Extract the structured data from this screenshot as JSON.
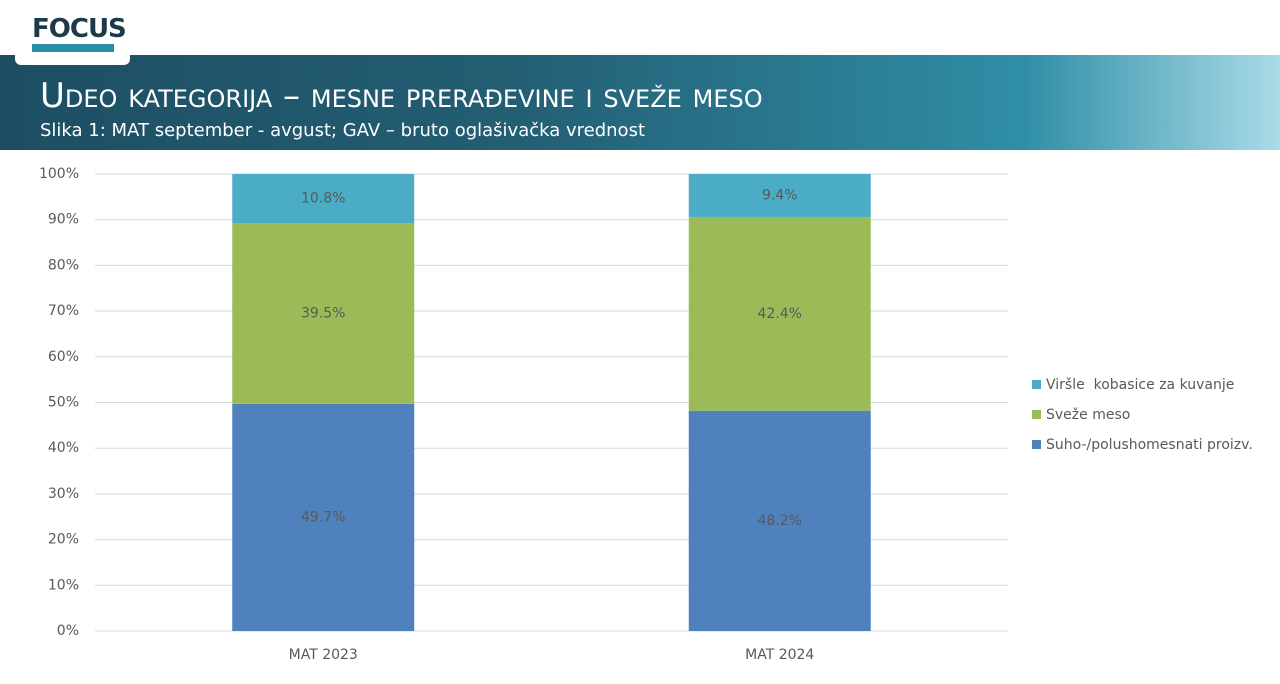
{
  "header": {
    "logo": "FOCUS",
    "title": "Udeo kategorija – mesne prerađevine i sveže meso",
    "subtitle": "Slika 1: MAT september - avgust; GAV – bruto oglašivačka vrednost"
  },
  "chart_data": {
    "type": "stacked-bar",
    "categories": [
      "MAT 2023",
      "MAT 2024"
    ],
    "series": [
      {
        "name": "Suho-/polushomesnati proizv.",
        "color": "#4f81bd",
        "values": [
          49.7,
          48.2
        ],
        "value_labels": [
          "49.7%",
          "48.2%"
        ]
      },
      {
        "name": "Sveže meso",
        "color": "#9bbb59",
        "values": [
          39.5,
          42.4
        ],
        "value_labels": [
          "39.5%",
          "42.4%"
        ]
      },
      {
        "name": "Viršle  kobasice za kuvanje",
        "color": "#4bacc6",
        "values": [
          10.8,
          9.4
        ],
        "value_labels": [
          "10.8%",
          "9.4%"
        ]
      }
    ],
    "ylim": [
      0,
      100
    ],
    "yticks": [
      {
        "value": 0,
        "label": "0%"
      },
      {
        "value": 10,
        "label": "10%"
      },
      {
        "value": 20,
        "label": "20%"
      },
      {
        "value": 30,
        "label": "30%"
      },
      {
        "value": 40,
        "label": "40%"
      },
      {
        "value": 50,
        "label": "50%"
      },
      {
        "value": 60,
        "label": "60%"
      },
      {
        "value": 70,
        "label": "70%"
      },
      {
        "value": 80,
        "label": "80%"
      },
      {
        "value": 90,
        "label": "90%"
      },
      {
        "value": 100,
        "label": "100%"
      }
    ],
    "grid": true,
    "legend": "right"
  }
}
